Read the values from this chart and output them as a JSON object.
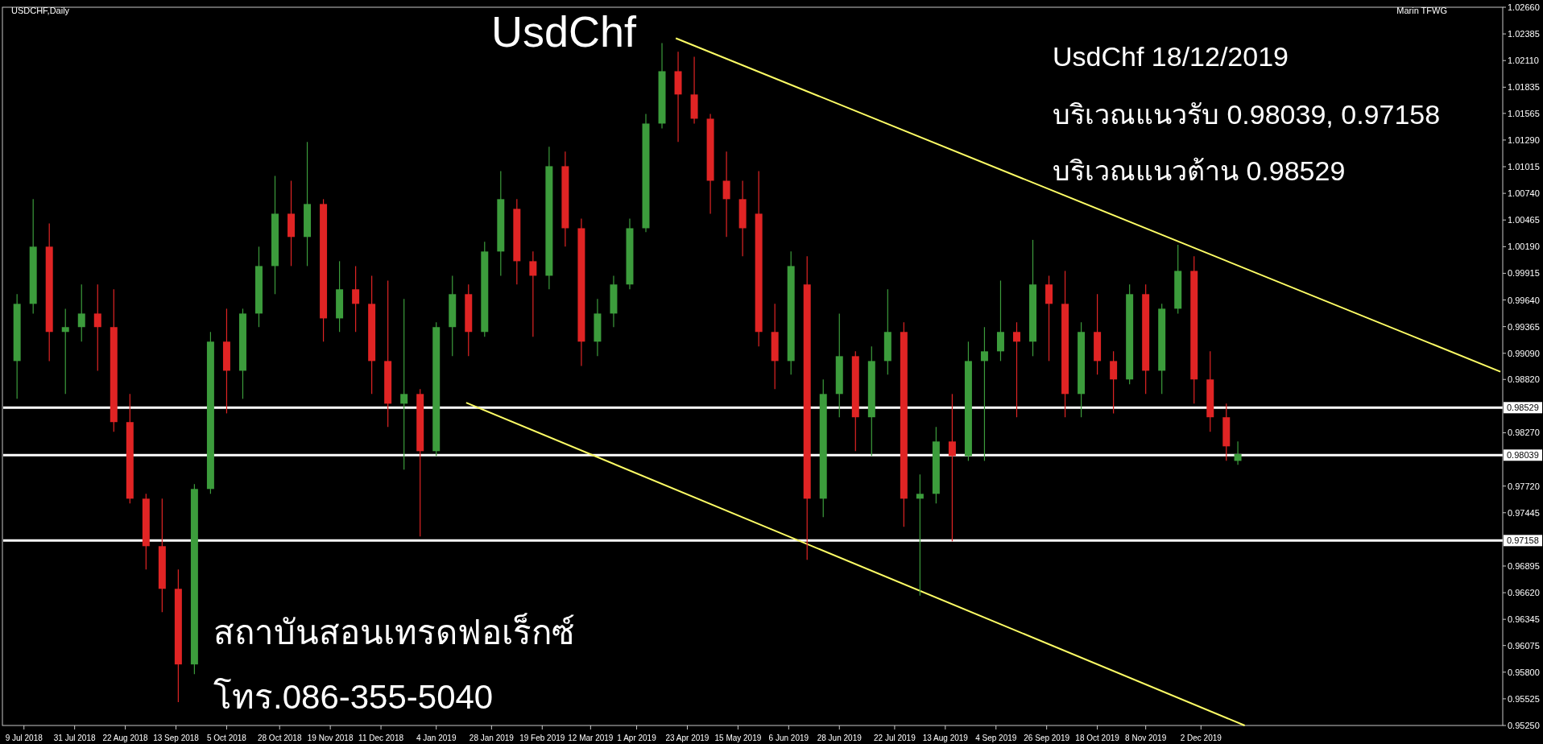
{
  "chart_data": {
    "type": "candlestick",
    "title": "UsdChf",
    "annotations": [
      "USDCHF,Daily",
      "Marin TFWG",
      "UsdChf 18/12/2019",
      "บริเวณแนวรับ 0.98039, 0.97158",
      "บริเวณแนวต้าน 0.98529",
      "สถาบันสอนเทรดฟอเร็กซ์",
      "โทร.086-355-5040"
    ],
    "colors": [
      "#3c9c3c",
      "#3c9c3c",
      "#e02424",
      "#3c9c3c",
      "#3c9c3c",
      "#e02424",
      "#e02424",
      "#e02424",
      "#e02424",
      "#e02424",
      "#e02424",
      "#3c9c3c",
      "#3c9c3c",
      "#e02424",
      "#3c9c3c",
      "#3c9c3c",
      "#3c9c3c",
      "#e02424",
      "#3c9c3c",
      "#e02424",
      "#3c9c3c",
      "#e02424",
      "#e02424",
      "#e02424",
      "#3c9c3c",
      "#e02424",
      "#3c9c3c",
      "#3c9c3c",
      "#e02424",
      "#3c9c3c",
      "#3c9c3c",
      "#e02424",
      "#e02424",
      "#3c9c3c",
      "#e02424",
      "#e02424",
      "#3c9c3c",
      "#3c9c3c",
      "#3c9c3c",
      "#3c9c3c",
      "#3c9c3c",
      "#e02424",
      "#e02424",
      "#e02424",
      "#e02424",
      "#e02424",
      "#e02424",
      "#e02424",
      "#3c9c3c",
      "#e02424",
      "#3c9c3c",
      "#3c9c3c",
      "#e02424",
      "#3c9c3c",
      "#3c9c3c",
      "#e02424",
      "#3c9c3c",
      "#3c9c3c",
      "#e02424",
      "#3c9c3c",
      "#3c9c3c",
      "#3c9c3c",
      "#e02424",
      "#3c9c3c",
      "#e02424",
      "#e02424",
      "#3c9c3c",
      "#e02424",
      "#e02424",
      "#3c9c3c",
      "#e02424",
      "#3c9c3c",
      "#3c9c3c",
      "#e02424",
      "#e02424",
      "#e02424",
      "#3c9c3c"
    ],
    "x": [
      "2018-07-06",
      "2018-07-13",
      "2018-07-20",
      "2018-07-27",
      "2018-08-03",
      "2018-08-10",
      "2018-08-17",
      "2018-08-24",
      "2018-08-31",
      "2018-09-07",
      "2018-09-14",
      "2018-09-21",
      "2018-09-28",
      "2018-10-05",
      "2018-10-12",
      "2018-10-19",
      "2018-10-26",
      "2018-11-02",
      "2018-11-09",
      "2018-11-16",
      "2018-11-23",
      "2018-11-30",
      "2018-12-07",
      "2018-12-14",
      "2018-12-21",
      "2018-12-28",
      "2019-01-04",
      "2019-01-11",
      "2019-01-18",
      "2019-01-25",
      "2019-02-01",
      "2019-02-08",
      "2019-02-15",
      "2019-02-22",
      "2019-03-01",
      "2019-03-08",
      "2019-03-15",
      "2019-03-22",
      "2019-03-29",
      "2019-04-05",
      "2019-04-12",
      "2019-04-19",
      "2019-04-26",
      "2019-05-03",
      "2019-05-10",
      "2019-05-17",
      "2019-05-24",
      "2019-05-31",
      "2019-06-07",
      "2019-06-14",
      "2019-06-21",
      "2019-06-28",
      "2019-07-05",
      "2019-07-12",
      "2019-07-19",
      "2019-07-26",
      "2019-08-02",
      "2019-08-09",
      "2019-08-16",
      "2019-08-23",
      "2019-08-30",
      "2019-09-06",
      "2019-09-13",
      "2019-09-20",
      "2019-09-27",
      "2019-10-04",
      "2019-10-11",
      "2019-10-18",
      "2019-10-25",
      "2019-11-01",
      "2019-11-08",
      "2019-11-15",
      "2019-11-22",
      "2019-11-29",
      "2019-12-06",
      "2019-12-13",
      "2019-12-18"
    ],
    "ohlc": [
      [
        0.9901,
        0.997,
        0.9862,
        0.996
      ],
      [
        0.996,
        1.0068,
        0.995,
        1.0019
      ],
      [
        1.0019,
        1.0043,
        0.9901,
        0.9931
      ],
      [
        0.9931,
        0.9955,
        0.9867,
        0.9936
      ],
      [
        0.9936,
        0.998,
        0.9921,
        0.995
      ],
      [
        0.995,
        0.998,
        0.9891,
        0.9936
      ],
      [
        0.9936,
        0.9975,
        0.9828,
        0.9838
      ],
      [
        0.9838,
        0.9867,
        0.9754,
        0.9759
      ],
      [
        0.9759,
        0.9764,
        0.9686,
        0.971
      ],
      [
        0.971,
        0.9759,
        0.9642,
        0.9666
      ],
      [
        0.9666,
        0.9686,
        0.9549,
        0.9588
      ],
      [
        0.9588,
        0.9774,
        0.9578,
        0.9769
      ],
      [
        0.9769,
        0.9931,
        0.9764,
        0.9921
      ],
      [
        0.9921,
        0.9955,
        0.9847,
        0.9891
      ],
      [
        0.9891,
        0.9955,
        0.9862,
        0.995
      ],
      [
        0.995,
        1.0019,
        0.9936,
        0.9999
      ],
      [
        0.9999,
        1.0092,
        0.997,
        1.0053
      ],
      [
        1.0053,
        1.0087,
        0.9999,
        1.0029
      ],
      [
        1.0029,
        1.0127,
        0.9999,
        1.0063
      ],
      [
        1.0063,
        1.0068,
        0.9921,
        0.9945
      ],
      [
        0.9945,
        1.0004,
        0.9931,
        0.9975
      ],
      [
        0.9975,
        0.9999,
        0.9931,
        0.996
      ],
      [
        0.996,
        0.9989,
        0.9867,
        0.9901
      ],
      [
        0.9901,
        0.9984,
        0.9833,
        0.9857
      ],
      [
        0.9857,
        0.9965,
        0.9789,
        0.9867
      ],
      [
        0.9867,
        0.9872,
        0.972,
        0.9808
      ],
      [
        0.9808,
        0.9941,
        0.9803,
        0.9936
      ],
      [
        0.9936,
        0.9989,
        0.9906,
        0.997
      ],
      [
        0.997,
        0.998,
        0.9906,
        0.9931
      ],
      [
        0.9931,
        1.0024,
        0.9926,
        1.0014
      ],
      [
        1.0014,
        1.0097,
        0.9989,
        1.0068
      ],
      [
        1.0058,
        1.0068,
        0.998,
        1.0004
      ],
      [
        1.0004,
        1.0014,
        0.9926,
        0.9989
      ],
      [
        0.9989,
        1.0122,
        0.9975,
        1.0102
      ],
      [
        1.0102,
        1.0117,
        1.0019,
        1.0038
      ],
      [
        1.0038,
        1.0048,
        0.9896,
        0.9921
      ],
      [
        0.9921,
        0.9965,
        0.9906,
        0.995
      ],
      [
        0.995,
        0.9989,
        0.9936,
        0.998
      ],
      [
        0.998,
        1.0048,
        0.9975,
        1.0038
      ],
      [
        1.0038,
        1.0156,
        1.0034,
        1.0146
      ],
      [
        1.0146,
        1.0229,
        1.0141,
        1.02
      ],
      [
        1.02,
        1.022,
        1.0127,
        1.0176
      ],
      [
        1.0176,
        1.0215,
        1.0146,
        1.0151
      ],
      [
        1.0151,
        1.0156,
        1.0053,
        1.0087
      ],
      [
        1.0087,
        1.0117,
        1.0029,
        1.0068
      ],
      [
        1.0068,
        1.0087,
        1.0009,
        1.0038
      ],
      [
        1.0053,
        1.0097,
        0.9916,
        0.9931
      ],
      [
        0.9931,
        0.996,
        0.9872,
        0.9901
      ],
      [
        0.9901,
        1.0014,
        0.9887,
        0.9999
      ],
      [
        0.998,
        1.0009,
        0.9696,
        0.9759
      ],
      [
        0.9759,
        0.9882,
        0.974,
        0.9867
      ],
      [
        0.9867,
        0.995,
        0.9843,
        0.9906
      ],
      [
        0.9906,
        0.9911,
        0.9808,
        0.9843
      ],
      [
        0.9843,
        0.9916,
        0.9803,
        0.9901
      ],
      [
        0.9901,
        0.9975,
        0.9887,
        0.9931
      ],
      [
        0.9931,
        0.9941,
        0.973,
        0.9759
      ],
      [
        0.9759,
        0.9784,
        0.9659,
        0.9764
      ],
      [
        0.9764,
        0.9833,
        0.9754,
        0.9818
      ],
      [
        0.9818,
        0.9867,
        0.9715,
        0.9803
      ],
      [
        0.9803,
        0.9921,
        0.9798,
        0.9901
      ],
      [
        0.9901,
        0.9936,
        0.9798,
        0.9911
      ],
      [
        0.9911,
        0.9984,
        0.9901,
        0.9931
      ],
      [
        0.9931,
        0.9941,
        0.9843,
        0.9921
      ],
      [
        0.9921,
        1.0026,
        0.9906,
        0.998
      ],
      [
        0.998,
        0.9989,
        0.9901,
        0.996
      ],
      [
        0.996,
        0.9994,
        0.9843,
        0.9867
      ],
      [
        0.9867,
        0.9941,
        0.9843,
        0.9931
      ],
      [
        0.9931,
        0.997,
        0.9887,
        0.9901
      ],
      [
        0.9901,
        0.9911,
        0.9847,
        0.9882
      ],
      [
        0.9882,
        0.998,
        0.9877,
        0.997
      ],
      [
        0.997,
        0.998,
        0.9867,
        0.9891
      ],
      [
        0.9891,
        0.996,
        0.9867,
        0.9955
      ],
      [
        0.9955,
        1.0021,
        0.995,
        0.9994
      ],
      [
        0.9994,
        1.0009,
        0.9857,
        0.9882
      ],
      [
        0.9882,
        0.9911,
        0.9828,
        0.9843
      ],
      [
        0.9843,
        0.9857,
        0.9798,
        0.9813
      ],
      [
        0.9798,
        0.9818,
        0.9794,
        0.9805
      ]
    ],
    "series": [
      {
        "type": "line",
        "color": "#ffff66",
        "x": [
          "2019-04-18",
          "2020-04-10"
        ],
        "values": [
          1.0234,
          0.989
        ]
      },
      {
        "type": "line",
        "color": "#ffff66",
        "x": [
          "2019-01-17",
          "2019-12-21"
        ],
        "values": [
          0.9858,
          0.9525
        ]
      }
    ],
    "xlim": [
      "2018-06-30",
      "2020-04-11"
    ],
    "xticks": [
      {
        "value": "2018-07-09",
        "label": "9 Jul 2018"
      },
      {
        "value": "2018-07-31",
        "label": "31 Jul 2018"
      },
      {
        "value": "2018-08-22",
        "label": "22 Aug 2018"
      },
      {
        "value": "2018-09-13",
        "label": "13 Sep 2018"
      },
      {
        "value": "2018-10-05",
        "label": "5 Oct 2018"
      },
      {
        "value": "2018-10-28",
        "label": "28 Oct 2018"
      },
      {
        "value": "2018-11-19",
        "label": "19 Nov 2018"
      },
      {
        "value": "2018-12-11",
        "label": "11 Dec 2018"
      },
      {
        "value": "2019-01-04",
        "label": "4 Jan 2019"
      },
      {
        "value": "2019-01-28",
        "label": "28 Jan 2019"
      },
      {
        "value": "2019-02-19",
        "label": "19 Feb 2019"
      },
      {
        "value": "2019-03-12",
        "label": "12 Mar 2019"
      },
      {
        "value": "2019-04-01",
        "label": "1 Apr 2019"
      },
      {
        "value": "2019-04-23",
        "label": "23 Apr 2019"
      },
      {
        "value": "2019-05-15",
        "label": "15 May 2019"
      },
      {
        "value": "2019-06-06",
        "label": "6 Jun 2019"
      },
      {
        "value": "2019-06-28",
        "label": "28 Jun 2019"
      },
      {
        "value": "2019-07-22",
        "label": "22 Jul 2019"
      },
      {
        "value": "2019-08-13",
        "label": "13 Aug 2019"
      },
      {
        "value": "2019-09-04",
        "label": "4 Sep 2019"
      },
      {
        "value": "2019-09-26",
        "label": "26 Sep 2019"
      },
      {
        "value": "2019-10-18",
        "label": "18 Oct 2019"
      },
      {
        "value": "2019-11-08",
        "label": "8 Nov 2019"
      },
      {
        "value": "2019-12-02",
        "label": "2 Dec 2019"
      }
    ],
    "ylim": [
      0.9525,
      1.0266
    ],
    "yticks": [
      {
        "value": 1.0266,
        "label": "1.02660"
      },
      {
        "value": 1.02385,
        "label": "1.02385"
      },
      {
        "value": 1.0211,
        "label": "1.02110"
      },
      {
        "value": 1.01835,
        "label": "1.01835"
      },
      {
        "value": 1.01565,
        "label": "1.01565"
      },
      {
        "value": 1.0129,
        "label": "1.01290"
      },
      {
        "value": 1.01015,
        "label": "1.01015"
      },
      {
        "value": 1.0074,
        "label": "1.00740"
      },
      {
        "value": 1.00465,
        "label": "1.00465"
      },
      {
        "value": 1.0019,
        "label": "1.00190"
      },
      {
        "value": 0.99915,
        "label": "0.99915"
      },
      {
        "value": 0.9964,
        "label": "0.99640"
      },
      {
        "value": 0.99365,
        "label": "0.99365"
      },
      {
        "value": 0.9909,
        "label": "0.99090"
      },
      {
        "value": 0.9882,
        "label": "0.98820"
      },
      {
        "value": 0.9827,
        "label": "0.98270"
      },
      {
        "value": 0.9772,
        "label": "0.97720"
      },
      {
        "value": 0.97445,
        "label": "0.97445"
      },
      {
        "value": 0.96895,
        "label": "0.96895"
      },
      {
        "value": 0.9662,
        "label": "0.96620"
      },
      {
        "value": 0.96345,
        "label": "0.96345"
      },
      {
        "value": 0.96075,
        "label": "0.96075"
      },
      {
        "value": 0.958,
        "label": "0.95800"
      },
      {
        "value": 0.95525,
        "label": "0.95525"
      },
      {
        "value": 0.9525,
        "label": "0.95250"
      }
    ],
    "ref_lines": [
      {
        "axis": "y",
        "value": 0.98529,
        "label": "0.98529",
        "color": "#ffffff"
      },
      {
        "axis": "y",
        "value": 0.98039,
        "label": "0.98039",
        "color": "#ffffff"
      },
      {
        "axis": "y",
        "value": 0.97158,
        "label": "0.97158",
        "color": "#ffffff"
      }
    ],
    "grid": false
  }
}
